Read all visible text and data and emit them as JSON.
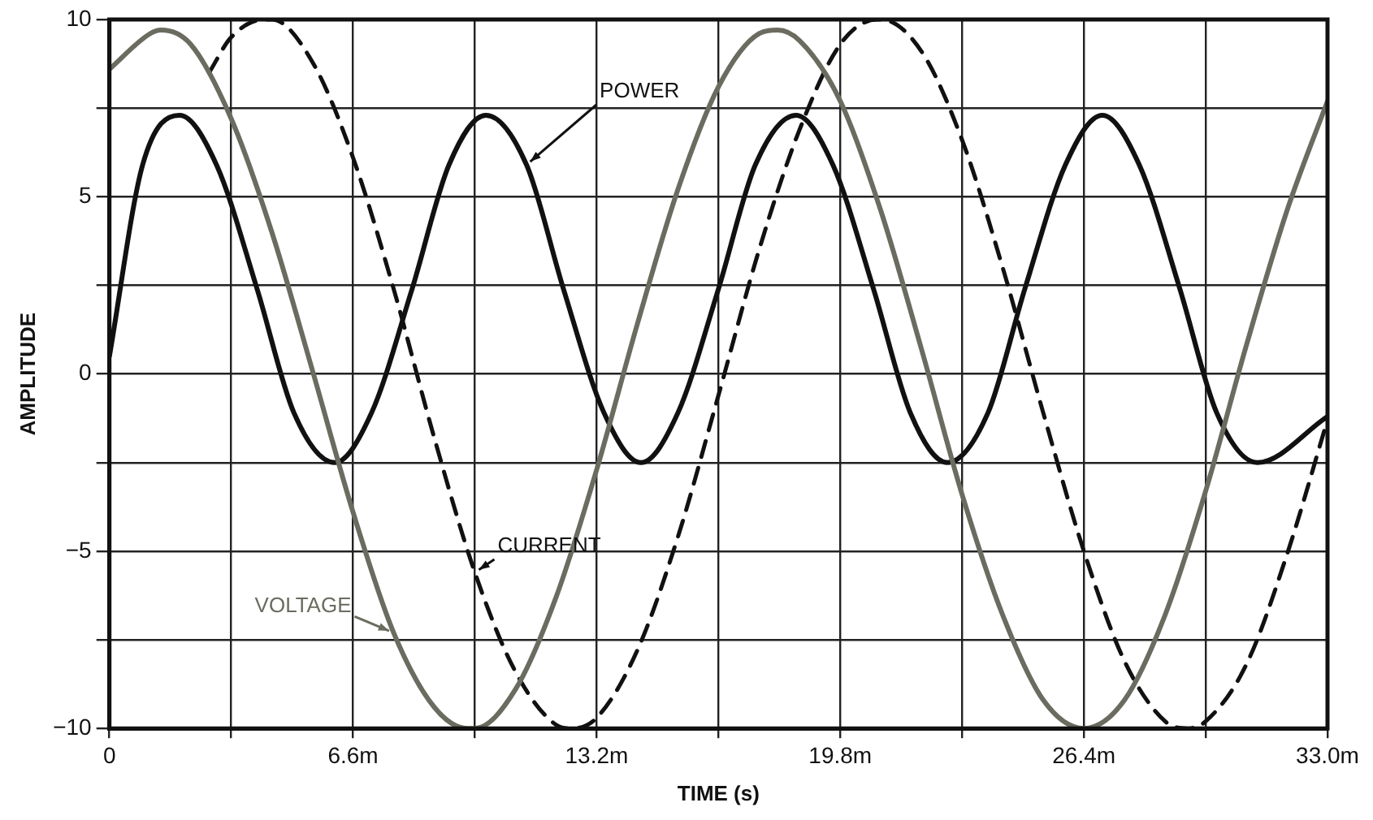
{
  "chart_data": {
    "type": "line",
    "xlabel": "TIME (s)",
    "ylabel": "AMPLITUDE",
    "xlim": [
      0,
      33
    ],
    "ylim": [
      -10,
      10
    ],
    "xticks": [
      0,
      {
        "value": 3.3,
        "label": null
      },
      {
        "value": 6.6,
        "label": "6.6m"
      },
      {
        "value": 9.9,
        "label": null
      },
      {
        "value": 13.2,
        "label": "13.2m"
      },
      {
        "value": 16.5,
        "label": null
      },
      {
        "value": 19.8,
        "label": "19.8m"
      },
      {
        "value": 23.1,
        "label": null
      },
      {
        "value": 26.4,
        "label": "26.4m"
      },
      {
        "value": 29.7,
        "label": null
      },
      {
        "value": 33,
        "label": "33.0m"
      }
    ],
    "yticks": [
      -10,
      {
        "value": -7.5,
        "label": null
      },
      -5,
      {
        "value": -2.5,
        "label": null
      },
      0,
      {
        "value": 2.5,
        "label": null
      },
      5,
      {
        "value": 7.5,
        "label": null
      },
      10
    ],
    "grid": true,
    "legend": false,
    "marker": "none",
    "series": [
      {
        "name": "VOLTAGE",
        "color": "#6b6b60",
        "line_style": "solid",
        "x": [
          0,
          1.1,
          1.4,
          2.2,
          3.3,
          4.4,
          5.5,
          6.6,
          7.7,
          8.8,
          9.7,
          9.9,
          11,
          12.1,
          13.2,
          14.3,
          15.4,
          16.5,
          17.6,
          18.1,
          18.7,
          19.8,
          20.9,
          22,
          23.1,
          24.2,
          25.3,
          26.4,
          27.5,
          28.6,
          29.7,
          30.8,
          31.9,
          33
        ],
        "values": [
          8.6,
          9.6,
          9.7,
          9.3,
          7.2,
          4.0,
          0.1,
          -3.9,
          -7.3,
          -9.4,
          -10,
          -10,
          -8.9,
          -6.3,
          -2.7,
          1.4,
          5.2,
          8.1,
          9.6,
          9.7,
          9.4,
          7.7,
          4.6,
          0.7,
          -3.4,
          -6.8,
          -9.2,
          -10,
          -9.2,
          -6.8,
          -3.3,
          0.8,
          4.6,
          7.7
        ]
      },
      {
        "name": "CURRENT",
        "color": "#111111",
        "line_style": "dashed",
        "x": [
          2.7,
          3.3,
          4.2,
          4.4,
          5.5,
          6.6,
          7.7,
          8.8,
          9.9,
          11,
          12.1,
          12.5,
          13.2,
          14.3,
          15.4,
          16.5,
          17.6,
          18.7,
          19.8,
          20.8,
          20.9,
          22,
          23.1,
          24.2,
          25.3,
          26.4,
          27.5,
          28.6,
          29.2,
          29.7,
          30.8,
          31.9,
          33
        ],
        "values": [
          8.5,
          9.5,
          10,
          10,
          8.8,
          6.1,
          2.4,
          -1.8,
          -5.6,
          -8.4,
          -9.9,
          -10,
          -9.7,
          -7.8,
          -4.6,
          -0.6,
          3.5,
          6.9,
          9.3,
          10,
          10,
          9.1,
          6.6,
          3.0,
          -1.1,
          -5.0,
          -8.1,
          -9.8,
          -10,
          -9.8,
          -8.2,
          -5.1,
          -1.3
        ]
      },
      {
        "name": "POWER",
        "color": "#111111",
        "line_style": "solid",
        "x": [
          0,
          0.9,
          1.9,
          2.9,
          4.0,
          5.0,
          6.1,
          7.1,
          8.2,
          9.2,
          10.2,
          11.3,
          12.3,
          13.4,
          14.4,
          15.4,
          16.5,
          17.5,
          18.6,
          19.6,
          20.7,
          21.7,
          22.7,
          23.8,
          24.8,
          25.9,
          26.9,
          27.9,
          29.0,
          30.0,
          31.1,
          33
        ],
        "values": [
          0.5,
          5.9,
          7.3,
          5.9,
          2.4,
          -1.1,
          -2.5,
          -1.1,
          2.4,
          5.9,
          7.3,
          5.9,
          2.4,
          -1.1,
          -2.5,
          -1.1,
          2.4,
          5.9,
          7.3,
          5.9,
          2.4,
          -1.1,
          -2.5,
          -1.1,
          2.4,
          5.9,
          7.3,
          5.9,
          2.4,
          -1.1,
          -2.5,
          -1.2
        ]
      }
    ]
  }
}
